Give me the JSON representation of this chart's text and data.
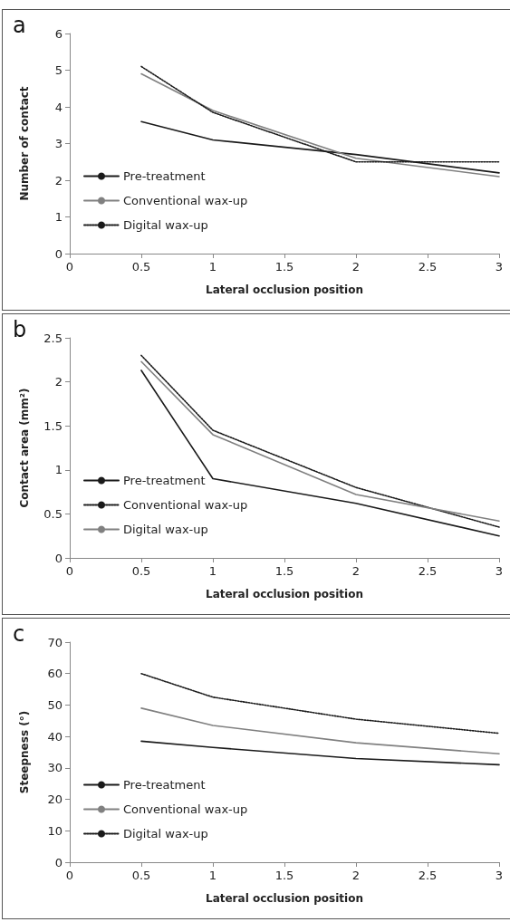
{
  "chart_data": [
    {
      "type": "line",
      "title": "a",
      "xlabel": "Lateral occlusion position",
      "ylabel": "Number of contact",
      "xlim": [
        0,
        3
      ],
      "xticks": [
        0,
        0.5,
        1,
        1.5,
        2,
        2.5,
        3
      ],
      "ylim": [
        0,
        6
      ],
      "yticks": [
        0,
        1,
        2,
        3,
        4,
        5,
        6
      ],
      "grid": false,
      "legend": "bottom left",
      "marker": "none",
      "x": [
        0.5,
        1,
        2,
        3
      ],
      "series": [
        {
          "name": "Pre-treatment",
          "color": "#1a1a1a",
          "line_style": "solid",
          "values": [
            3.6,
            3.1,
            2.7,
            2.2
          ]
        },
        {
          "name": "Conventional wax-up",
          "color": "#808080",
          "line_style": "solid",
          "values": [
            4.9,
            3.9,
            2.6,
            2.1
          ]
        },
        {
          "name": "Digital wax-up",
          "color": "#1a1a1a",
          "line_style": "dotted",
          "values": [
            5.1,
            3.85,
            2.5,
            2.5
          ]
        }
      ]
    },
    {
      "type": "line",
      "title": "b",
      "xlabel": "Lateral occlusion position",
      "ylabel": "Contact area (mm²)",
      "xlim": [
        0,
        3
      ],
      "xticks": [
        0,
        0.5,
        1,
        1.5,
        2,
        2.5,
        3
      ],
      "ylim": [
        0,
        2.5
      ],
      "yticks": [
        0,
        0.5,
        1,
        1.5,
        2,
        2.5
      ],
      "grid": false,
      "legend": "bottom left",
      "marker": "none",
      "x": [
        0.5,
        1,
        2,
        3
      ],
      "series": [
        {
          "name": "Pre-treatment",
          "color": "#1a1a1a",
          "line_style": "solid",
          "values": [
            2.13,
            0.9,
            0.62,
            0.25
          ]
        },
        {
          "name": "Conventional wax-up",
          "color": "#1a1a1a",
          "line_style": "dotted",
          "values": [
            2.3,
            1.45,
            0.8,
            0.35
          ]
        },
        {
          "name": "Digital wax-up",
          "color": "#808080",
          "line_style": "solid",
          "values": [
            2.23,
            1.4,
            0.72,
            0.42
          ]
        }
      ]
    },
    {
      "type": "line",
      "title": "c",
      "xlabel": "Lateral occlusion position",
      "ylabel": "Steepness (°)",
      "xlim": [
        0,
        3
      ],
      "xticks": [
        0,
        0.5,
        1,
        1.5,
        2,
        2.5,
        3
      ],
      "ylim": [
        0,
        70
      ],
      "yticks": [
        0,
        10,
        20,
        30,
        40,
        50,
        60,
        70
      ],
      "grid": false,
      "legend": "bottom left",
      "marker": "none",
      "x": [
        0.5,
        1,
        2,
        3
      ],
      "series": [
        {
          "name": "Pre-treatment",
          "color": "#1a1a1a",
          "line_style": "solid",
          "values": [
            38.5,
            36.5,
            33,
            31
          ]
        },
        {
          "name": "Conventional wax-up",
          "color": "#808080",
          "line_style": "solid",
          "values": [
            49,
            43.5,
            38,
            34.5
          ]
        },
        {
          "name": "Digital wax-up",
          "color": "#1a1a1a",
          "line_style": "dotted",
          "values": [
            60,
            52.5,
            45.5,
            41
          ]
        }
      ]
    }
  ]
}
